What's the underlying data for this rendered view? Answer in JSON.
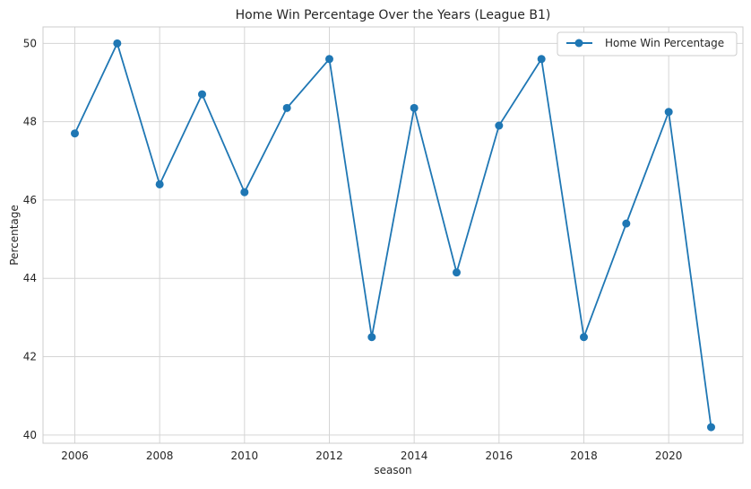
{
  "chart_data": {
    "type": "line",
    "title": "Home Win Percentage Over the Years (League B1)",
    "xlabel": "season",
    "ylabel": "Percentage",
    "x": [
      2006,
      2007,
      2008,
      2009,
      2010,
      2011,
      2012,
      2013,
      2014,
      2015,
      2016,
      2017,
      2018,
      2019,
      2020,
      2021
    ],
    "series": [
      {
        "name": "Home Win Percentage",
        "color": "#1f77b4",
        "values": [
          47.7,
          50.0,
          46.4,
          48.7,
          46.2,
          48.35,
          49.6,
          42.5,
          48.35,
          44.15,
          47.9,
          49.6,
          42.5,
          45.4,
          48.25,
          40.2
        ]
      }
    ],
    "xlim": [
      2005.25,
      2021.75
    ],
    "ylim": [
      39.79,
      50.42
    ],
    "xticks": [
      "2006",
      "2008",
      "2010",
      "2012",
      "2014",
      "2016",
      "2018",
      "2020"
    ],
    "yticks": [
      "40",
      "42",
      "44",
      "46",
      "48",
      "50"
    ],
    "grid": true,
    "legend_position": "top-right"
  }
}
